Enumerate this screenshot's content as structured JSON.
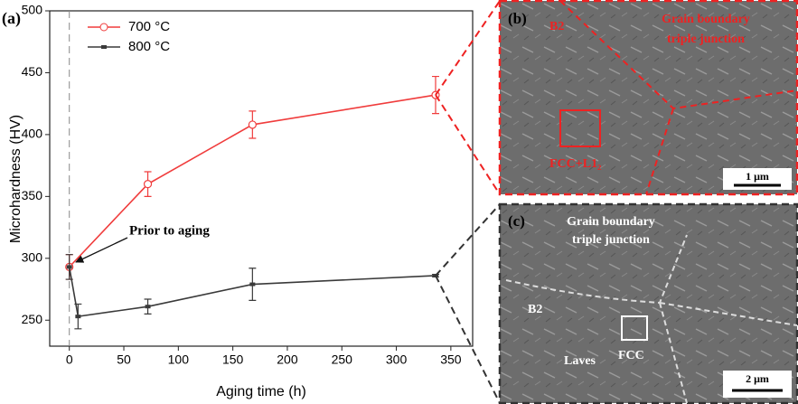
{
  "chart_data": {
    "type": "line",
    "panel_label": "(a)",
    "x_label": "Aging time (h)",
    "y_label": "Microhardness (HV)",
    "annotation": "Prior to aging",
    "xlim": [
      -18,
      370
    ],
    "xticks": [
      0,
      50,
      100,
      150,
      200,
      250,
      300,
      350
    ],
    "ylim": [
      229,
      500
    ],
    "yticks": [
      250,
      300,
      350,
      400,
      450,
      500
    ],
    "legend": "upper left",
    "series": [
      {
        "name": "700 °C",
        "color": "#f03c3c",
        "marker": "open-circle",
        "x": [
          0,
          72,
          168,
          336
        ],
        "values": [
          293,
          360,
          408,
          432
        ],
        "errors": [
          10,
          10,
          11,
          15
        ]
      },
      {
        "name": "800 °C",
        "color": "#3a3a3a",
        "marker": "square",
        "x": [
          0,
          8,
          72,
          168,
          336
        ],
        "values": [
          293,
          253,
          261,
          279,
          286
        ],
        "errors": [
          10,
          10,
          6,
          13,
          1
        ]
      }
    ]
  },
  "panels": [
    {
      "label": "(b)",
      "labels": [
        "B2",
        "Grain boundary",
        "triple junction",
        "FCC+L1₂"
      ],
      "scale": "1 μm"
    },
    {
      "label": "(c)",
      "labels": [
        "Grain boundary",
        "triple junction",
        "B2",
        "Laves",
        "FCC"
      ],
      "scale": "2 μm"
    }
  ]
}
